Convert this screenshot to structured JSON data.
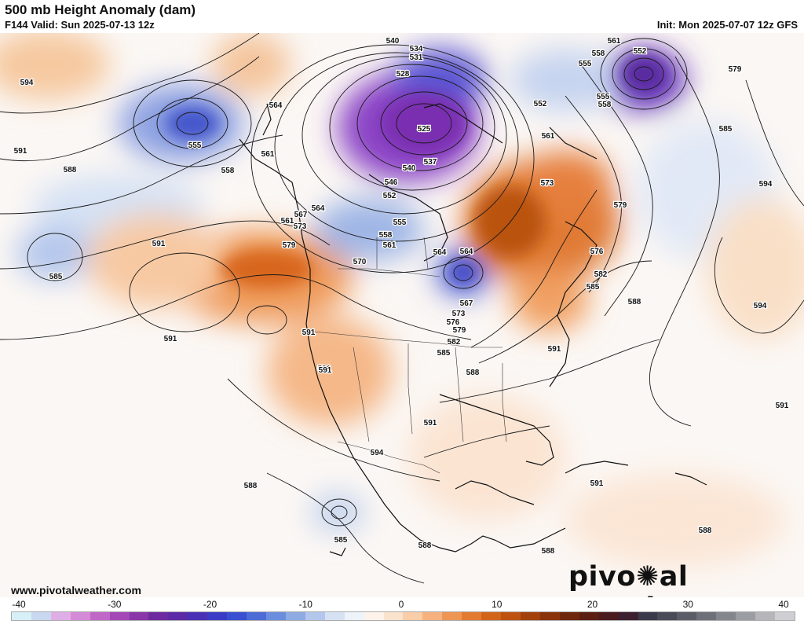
{
  "header": {
    "title": "500 mb Height Anomaly (dam)",
    "valid": "F144 Valid: Sun 2025-07-13 12z",
    "init": "Init: Mon 2025-07-07 12z GFS"
  },
  "footer": {
    "website": "www.pivotalweather.com",
    "logo_left": "pivo",
    "logo_right": "al weather"
  },
  "colorbar": {
    "ticks": [
      "-40",
      "-30",
      "-20",
      "-10",
      "0",
      "10",
      "20",
      "30",
      "40"
    ],
    "min": -40,
    "max": 40,
    "colors": [
      "#d7f0f7",
      "#c8d8f0",
      "#e0aee6",
      "#d58ad8",
      "#c067c8",
      "#a348b6",
      "#8a35a8",
      "#6d2aa0",
      "#5c2aa6",
      "#4a30b5",
      "#3a3cc6",
      "#3b4fd1",
      "#4c6bd6",
      "#6b8ddd",
      "#8eaae3",
      "#b3c6ec",
      "#d6e2f4",
      "#eef3fa",
      "#fdf3ea",
      "#fbe2cc",
      "#f8cda8",
      "#f5b27e",
      "#ee9553",
      "#e27a2f",
      "#d16418",
      "#bd5211",
      "#a3410c",
      "#8a320a",
      "#6e260c",
      "#5a1f12",
      "#4a1c1e",
      "#3d2030",
      "#3a3a4a",
      "#4a4a58",
      "#5c5c68",
      "#6f6f7a",
      "#85858e",
      "#9c9ca3",
      "#b5b5ba",
      "#cfcfd3"
    ]
  },
  "contour_labels": [
    {
      "v": "594"
    },
    {
      "v": "591"
    },
    {
      "v": "588"
    },
    {
      "v": "585"
    },
    {
      "v": "591"
    },
    {
      "v": "591"
    },
    {
      "v": "555"
    },
    {
      "v": "558"
    },
    {
      "v": "561"
    },
    {
      "v": "564"
    },
    {
      "v": "540"
    },
    {
      "v": "534"
    },
    {
      "v": "531"
    },
    {
      "v": "528"
    },
    {
      "v": "525"
    },
    {
      "v": "537"
    },
    {
      "v": "540"
    },
    {
      "v": "546"
    },
    {
      "v": "552"
    },
    {
      "v": "555"
    },
    {
      "v": "558"
    },
    {
      "v": "561"
    },
    {
      "v": "564"
    },
    {
      "v": "567"
    },
    {
      "v": "573"
    },
    {
      "v": "579"
    },
    {
      "v": "570"
    },
    {
      "v": "564"
    },
    {
      "v": "567"
    },
    {
      "v": "573"
    },
    {
      "v": "576"
    },
    {
      "v": "579"
    },
    {
      "v": "582"
    },
    {
      "v": "585"
    },
    {
      "v": "588"
    },
    {
      "v": "591"
    },
    {
      "v": "594"
    },
    {
      "v": "591"
    },
    {
      "v": "591"
    },
    {
      "v": "588"
    },
    {
      "v": "585"
    },
    {
      "v": "588"
    },
    {
      "v": "588"
    },
    {
      "v": "591"
    },
    {
      "v": "561"
    },
    {
      "v": "552"
    },
    {
      "v": "555"
    },
    {
      "v": "558"
    },
    {
      "v": "561"
    },
    {
      "v": "552"
    },
    {
      "v": "555"
    },
    {
      "v": "558"
    },
    {
      "v": "579"
    },
    {
      "v": "585"
    },
    {
      "v": "573"
    },
    {
      "v": "579"
    },
    {
      "v": "576"
    },
    {
      "v": "582"
    },
    {
      "v": "585"
    },
    {
      "v": "588"
    },
    {
      "v": "591"
    },
    {
      "v": "594"
    },
    {
      "v": "594"
    },
    {
      "v": "591"
    },
    {
      "v": "591"
    },
    {
      "v": "588"
    },
    {
      "v": "561"
    },
    {
      "v": "564"
    }
  ]
}
